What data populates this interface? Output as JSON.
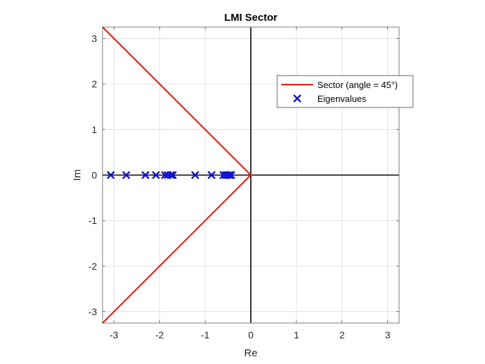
{
  "chart_data": {
    "type": "scatter",
    "title": "LMI Sector",
    "xlabel": "Re",
    "ylabel": "Im",
    "xlim": [
      -3.25,
      3.25
    ],
    "ylim": [
      -3.25,
      3.25
    ],
    "xticks": [
      -3,
      -2,
      -1,
      0,
      1,
      2,
      3
    ],
    "yticks": [
      -3,
      -2,
      -1,
      0,
      1,
      2,
      3
    ],
    "xtick_labels": [
      "-3",
      "-2",
      "-1",
      "0",
      "1",
      "2",
      "3"
    ],
    "ytick_labels": [
      "-3",
      "-2",
      "-1",
      "0",
      "1",
      "2",
      "3"
    ],
    "grid": true,
    "legend_position": "top-right",
    "series": [
      {
        "name": "Sector (angle = 45°)",
        "kind": "line",
        "color": "#e0241b",
        "x": [
          -3.25,
          0,
          -3.25
        ],
        "y": [
          3.25,
          0,
          -3.25
        ]
      },
      {
        "name": "Eigenvalues",
        "kind": "marker",
        "marker": "x",
        "color": "#1414c8",
        "x": [
          -3.07,
          -2.73,
          -2.31,
          -2.08,
          -1.88,
          -1.82,
          -1.75,
          -1.71,
          -1.22,
          -0.86,
          -0.6,
          -0.55,
          -0.51,
          -0.46,
          -0.43
        ],
        "y": [
          0,
          0,
          0,
          0,
          0,
          0,
          0,
          0,
          0,
          0,
          0,
          0,
          0,
          0,
          0
        ]
      }
    ]
  }
}
